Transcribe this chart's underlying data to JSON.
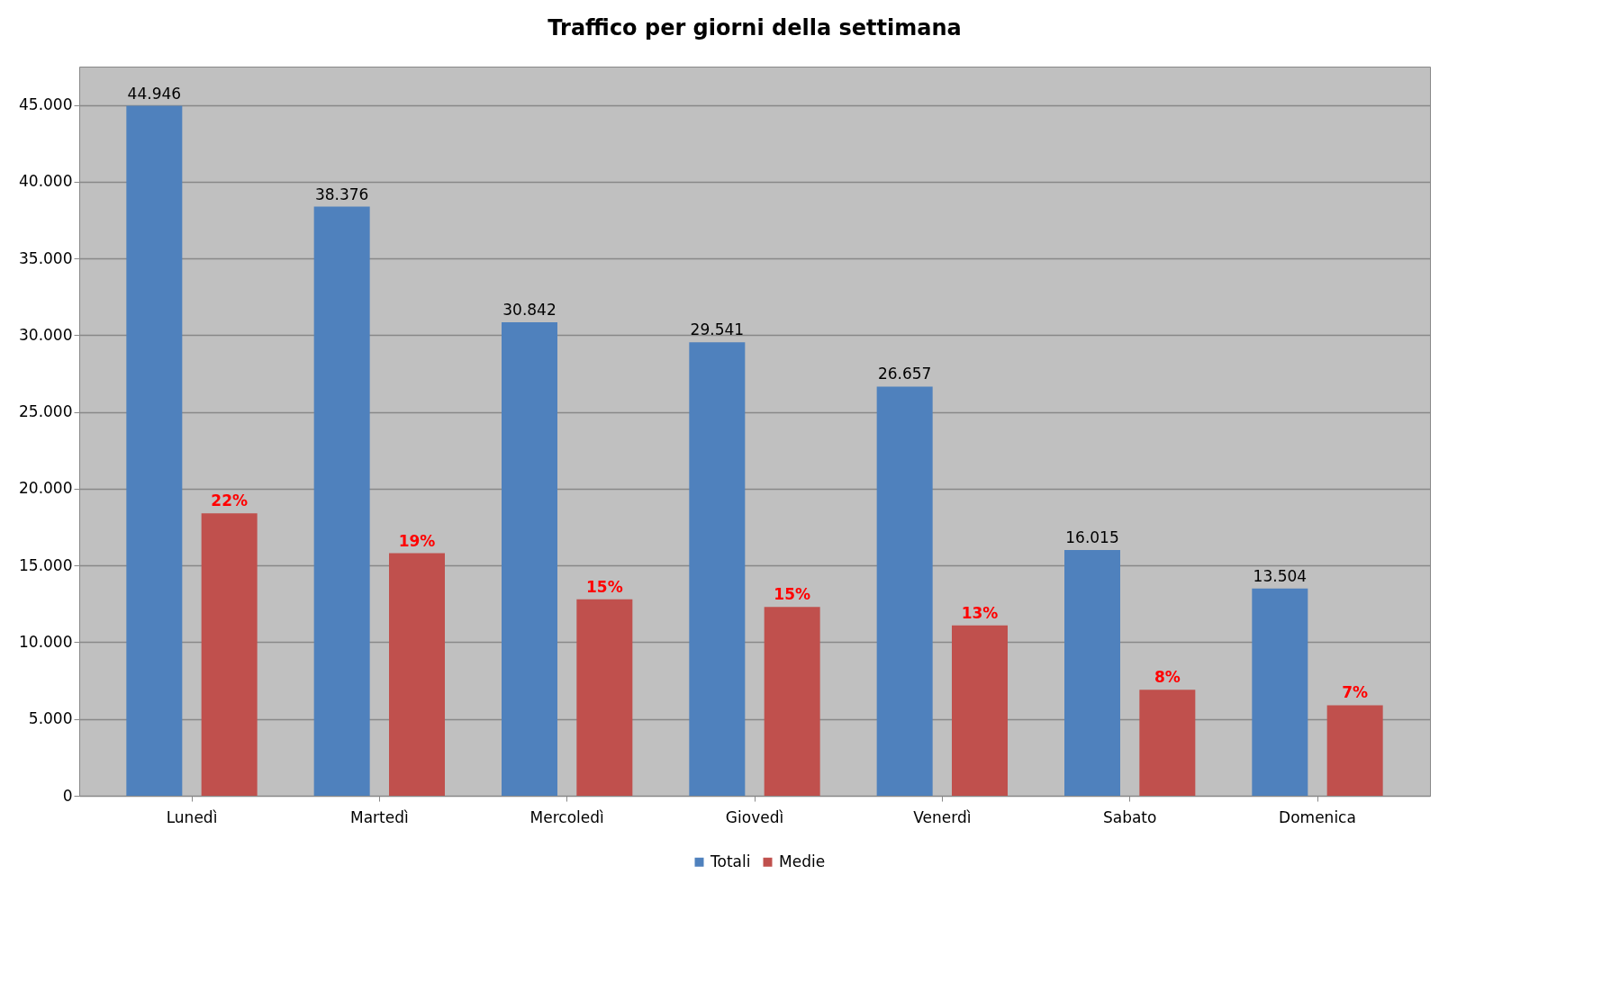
{
  "chart_data": {
    "type": "bar",
    "title": "Traffico per giorni della settimana",
    "categories": [
      "Lunedì",
      "Martedì",
      "Mercoledì",
      "Giovedì",
      "Venerdì",
      "Sabato",
      "Domenica"
    ],
    "series": [
      {
        "name": "Totali",
        "color": "#4f81bd",
        "values": [
          44946,
          38376,
          30842,
          29541,
          26657,
          16015,
          13504
        ],
        "value_labels": [
          "44.946",
          "38.376",
          "30.842",
          "29.541",
          "26.657",
          "16.015",
          "13.504"
        ]
      },
      {
        "name": "Medie",
        "color": "#c0504d",
        "values": [
          18400,
          15800,
          12800,
          12300,
          11100,
          6900,
          5900
        ]
      }
    ],
    "annotations": [
      "22%",
      "19%",
      "15%",
      "15%",
      "13%",
      "8%",
      "7%"
    ],
    "ylim": [
      0,
      47500
    ],
    "yticks": [
      0,
      {
        "value": 5000,
        "label": "5.000"
      },
      {
        "value": 10000,
        "label": "10.000"
      },
      {
        "value": 15000,
        "label": "15.000"
      },
      {
        "value": 20000,
        "label": "20.000"
      },
      {
        "value": 25000,
        "label": "25.000"
      },
      {
        "value": 30000,
        "label": "30.000"
      },
      {
        "value": 35000,
        "label": "35.000"
      },
      {
        "value": 40000,
        "label": "40.000"
      },
      {
        "value": 45000,
        "label": "45.000"
      }
    ],
    "grid": "y",
    "legend": "bottom"
  }
}
